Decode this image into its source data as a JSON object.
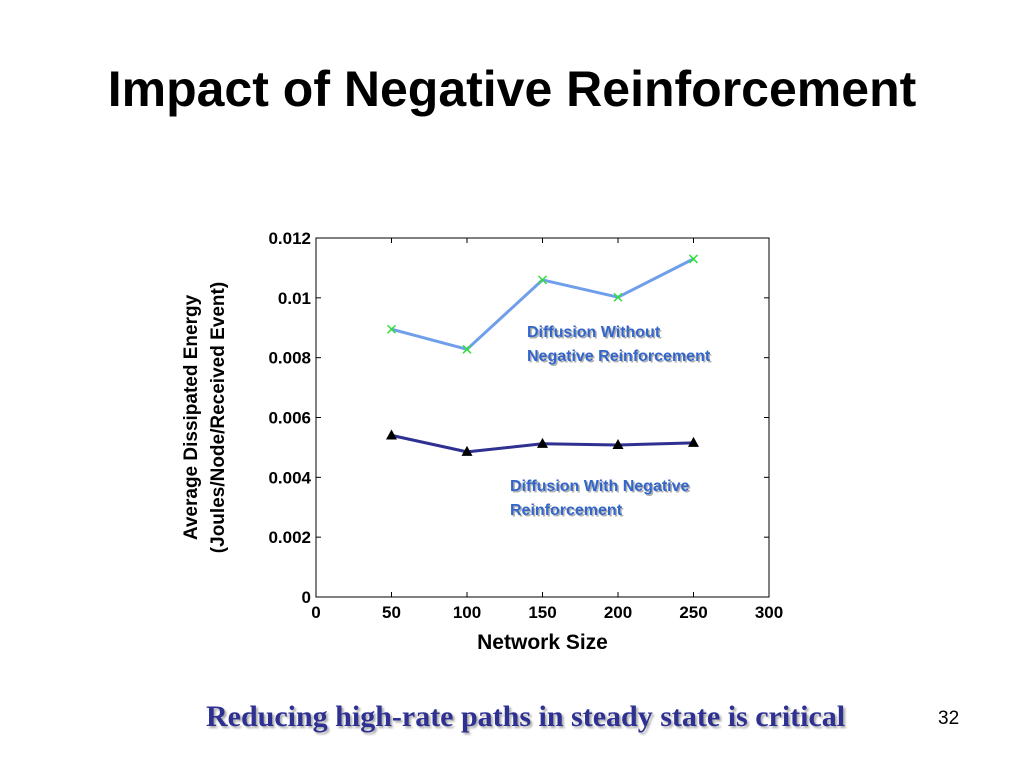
{
  "slide": {
    "title": "Impact of Negative Reinforcement",
    "caption": "Reducing high-rate paths in steady state is critical",
    "page_number": "32"
  },
  "chart_data": {
    "type": "line",
    "xlabel": "Network Size",
    "ylabel": [
      "Average Dissipated Energy",
      "(Joules/Node/Received Event)"
    ],
    "xlim": [
      0,
      300
    ],
    "ylim": [
      0,
      0.012
    ],
    "xticks": [
      0,
      50,
      100,
      150,
      200,
      250,
      300
    ],
    "xtick_labels": [
      "0",
      "50",
      "100",
      "150",
      "200",
      "250",
      "300"
    ],
    "yticks": [
      0,
      0.002,
      0.004,
      0.006,
      0.008,
      0.01,
      0.012
    ],
    "ytick_labels": [
      "0",
      "0.002",
      "0.004",
      "0.006",
      "0.008",
      "0.01",
      "0.012"
    ],
    "grid": false,
    "series": [
      {
        "name": "Diffusion Without Negative Reinforcement",
        "label_lines": [
          "Diffusion Without",
          "Negative Reinforcement"
        ],
        "x": [
          50,
          100,
          150,
          200,
          250
        ],
        "y": [
          0.00895,
          0.00828,
          0.0106,
          0.01002,
          0.0113
        ],
        "line_color": "#6f9eea",
        "marker": "x",
        "marker_color": "#2ee03a"
      },
      {
        "name": "Diffusion With Negative Reinforcement",
        "label_lines": [
          "Diffusion With Negative",
          "Reinforcement"
        ],
        "x": [
          50,
          100,
          150,
          200,
          250
        ],
        "y": [
          0.0054,
          0.00485,
          0.00512,
          0.00508,
          0.00515
        ],
        "line_color": "#2e3192",
        "marker": "triangle",
        "marker_color": "#000000"
      }
    ],
    "annotation_color": "#3366cc"
  }
}
